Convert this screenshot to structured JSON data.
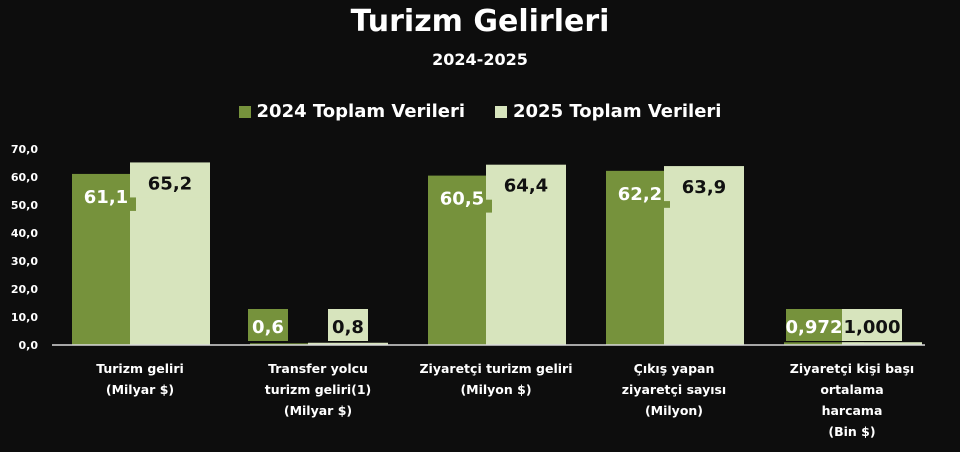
{
  "chart_data": {
    "type": "bar",
    "title": "Turizm Gelirleri",
    "subtitle": "2024-2025",
    "categories": [
      [
        "Turizm geliri",
        "(Milyar $)"
      ],
      [
        "Transfer yolcu",
        "turizm geliri(1)",
        "(Milyar  $)"
      ],
      [
        "Ziyaretçi turizm geliri",
        "(Milyon $)"
      ],
      [
        "Çıkış yapan",
        "ziyaretçi sayısı",
        "(Milyon)"
      ],
      [
        "Ziyaretçi kişi başı",
        "ortalama",
        "harcama",
        "(Bin  $)"
      ]
    ],
    "series": [
      {
        "name": "2024 Toplam Verileri",
        "color": "#76923c",
        "values": [
          61.1,
          0.6,
          60.5,
          62.2,
          0.972
        ],
        "labels": [
          "61,1",
          "0,6",
          "60,5",
          "62,2",
          "0,972"
        ]
      },
      {
        "name": "2025 Toplam Verileri",
        "color": "#d7e4bd",
        "values": [
          65.2,
          0.8,
          64.4,
          63.9,
          1.0
        ],
        "labels": [
          "65,2",
          "0,8",
          "64,4",
          "63,9",
          "1,000"
        ]
      }
    ],
    "yticks": [
      "0,0",
      "10,0",
      "20,0",
      "30,0",
      "40,0",
      "50,0",
      "60,0",
      "70,0"
    ],
    "ylim": [
      0,
      70
    ],
    "grid": false,
    "legend_position": "top"
  }
}
